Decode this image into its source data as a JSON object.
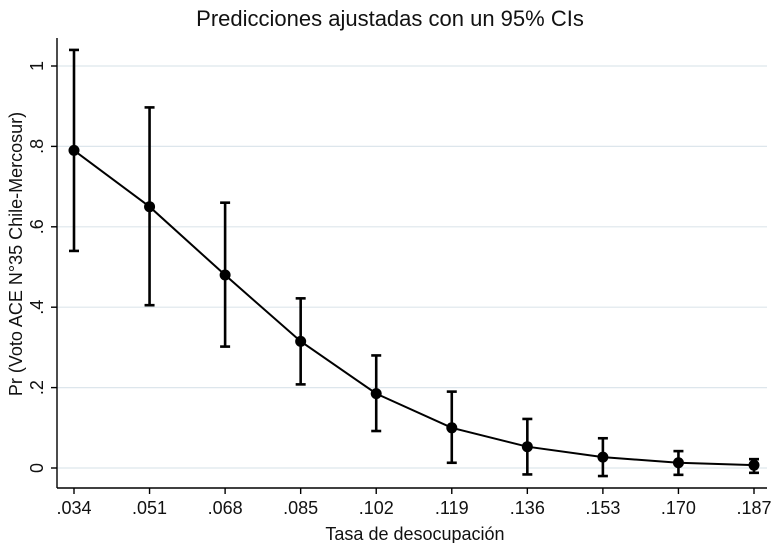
{
  "chart_data": {
    "type": "line",
    "title": "Predicciones ajustadas con un 95% CIs",
    "xlabel": "Tasa de desocupación",
    "ylabel": "Pr (Voto ACE N°35 Chile-Mercosur)",
    "x_tick_labels": [
      ".034",
      ".051",
      ".068",
      ".085",
      ".102",
      ".119",
      ".136",
      ".153",
      ".170",
      ".187"
    ],
    "y_tick_labels": [
      "0",
      ".2",
      ".4",
      ".6",
      ".8",
      "1"
    ],
    "y_ticks": [
      0,
      0.2,
      0.4,
      0.6,
      0.8,
      1.0
    ],
    "ylim": [
      -0.05,
      1.07
    ],
    "grid": true,
    "series": [
      {
        "x": [
          0.034,
          0.051,
          0.068,
          0.085,
          0.102,
          0.119,
          0.136,
          0.153,
          0.17,
          0.187
        ],
        "y": [
          0.79,
          0.65,
          0.48,
          0.315,
          0.185,
          0.1,
          0.053,
          0.027,
          0.013,
          0.007
        ],
        "ci_low": [
          0.54,
          0.405,
          0.302,
          0.208,
          0.092,
          0.013,
          -0.016,
          -0.02,
          -0.017,
          -0.012
        ],
        "ci_high": [
          1.04,
          0.897,
          0.66,
          0.422,
          0.28,
          0.19,
          0.122,
          0.074,
          0.042,
          0.022
        ]
      }
    ],
    "colors": {
      "line": "#000000",
      "grid": "#dde6ec",
      "axis": "#000000",
      "background": "#ffffff"
    }
  }
}
